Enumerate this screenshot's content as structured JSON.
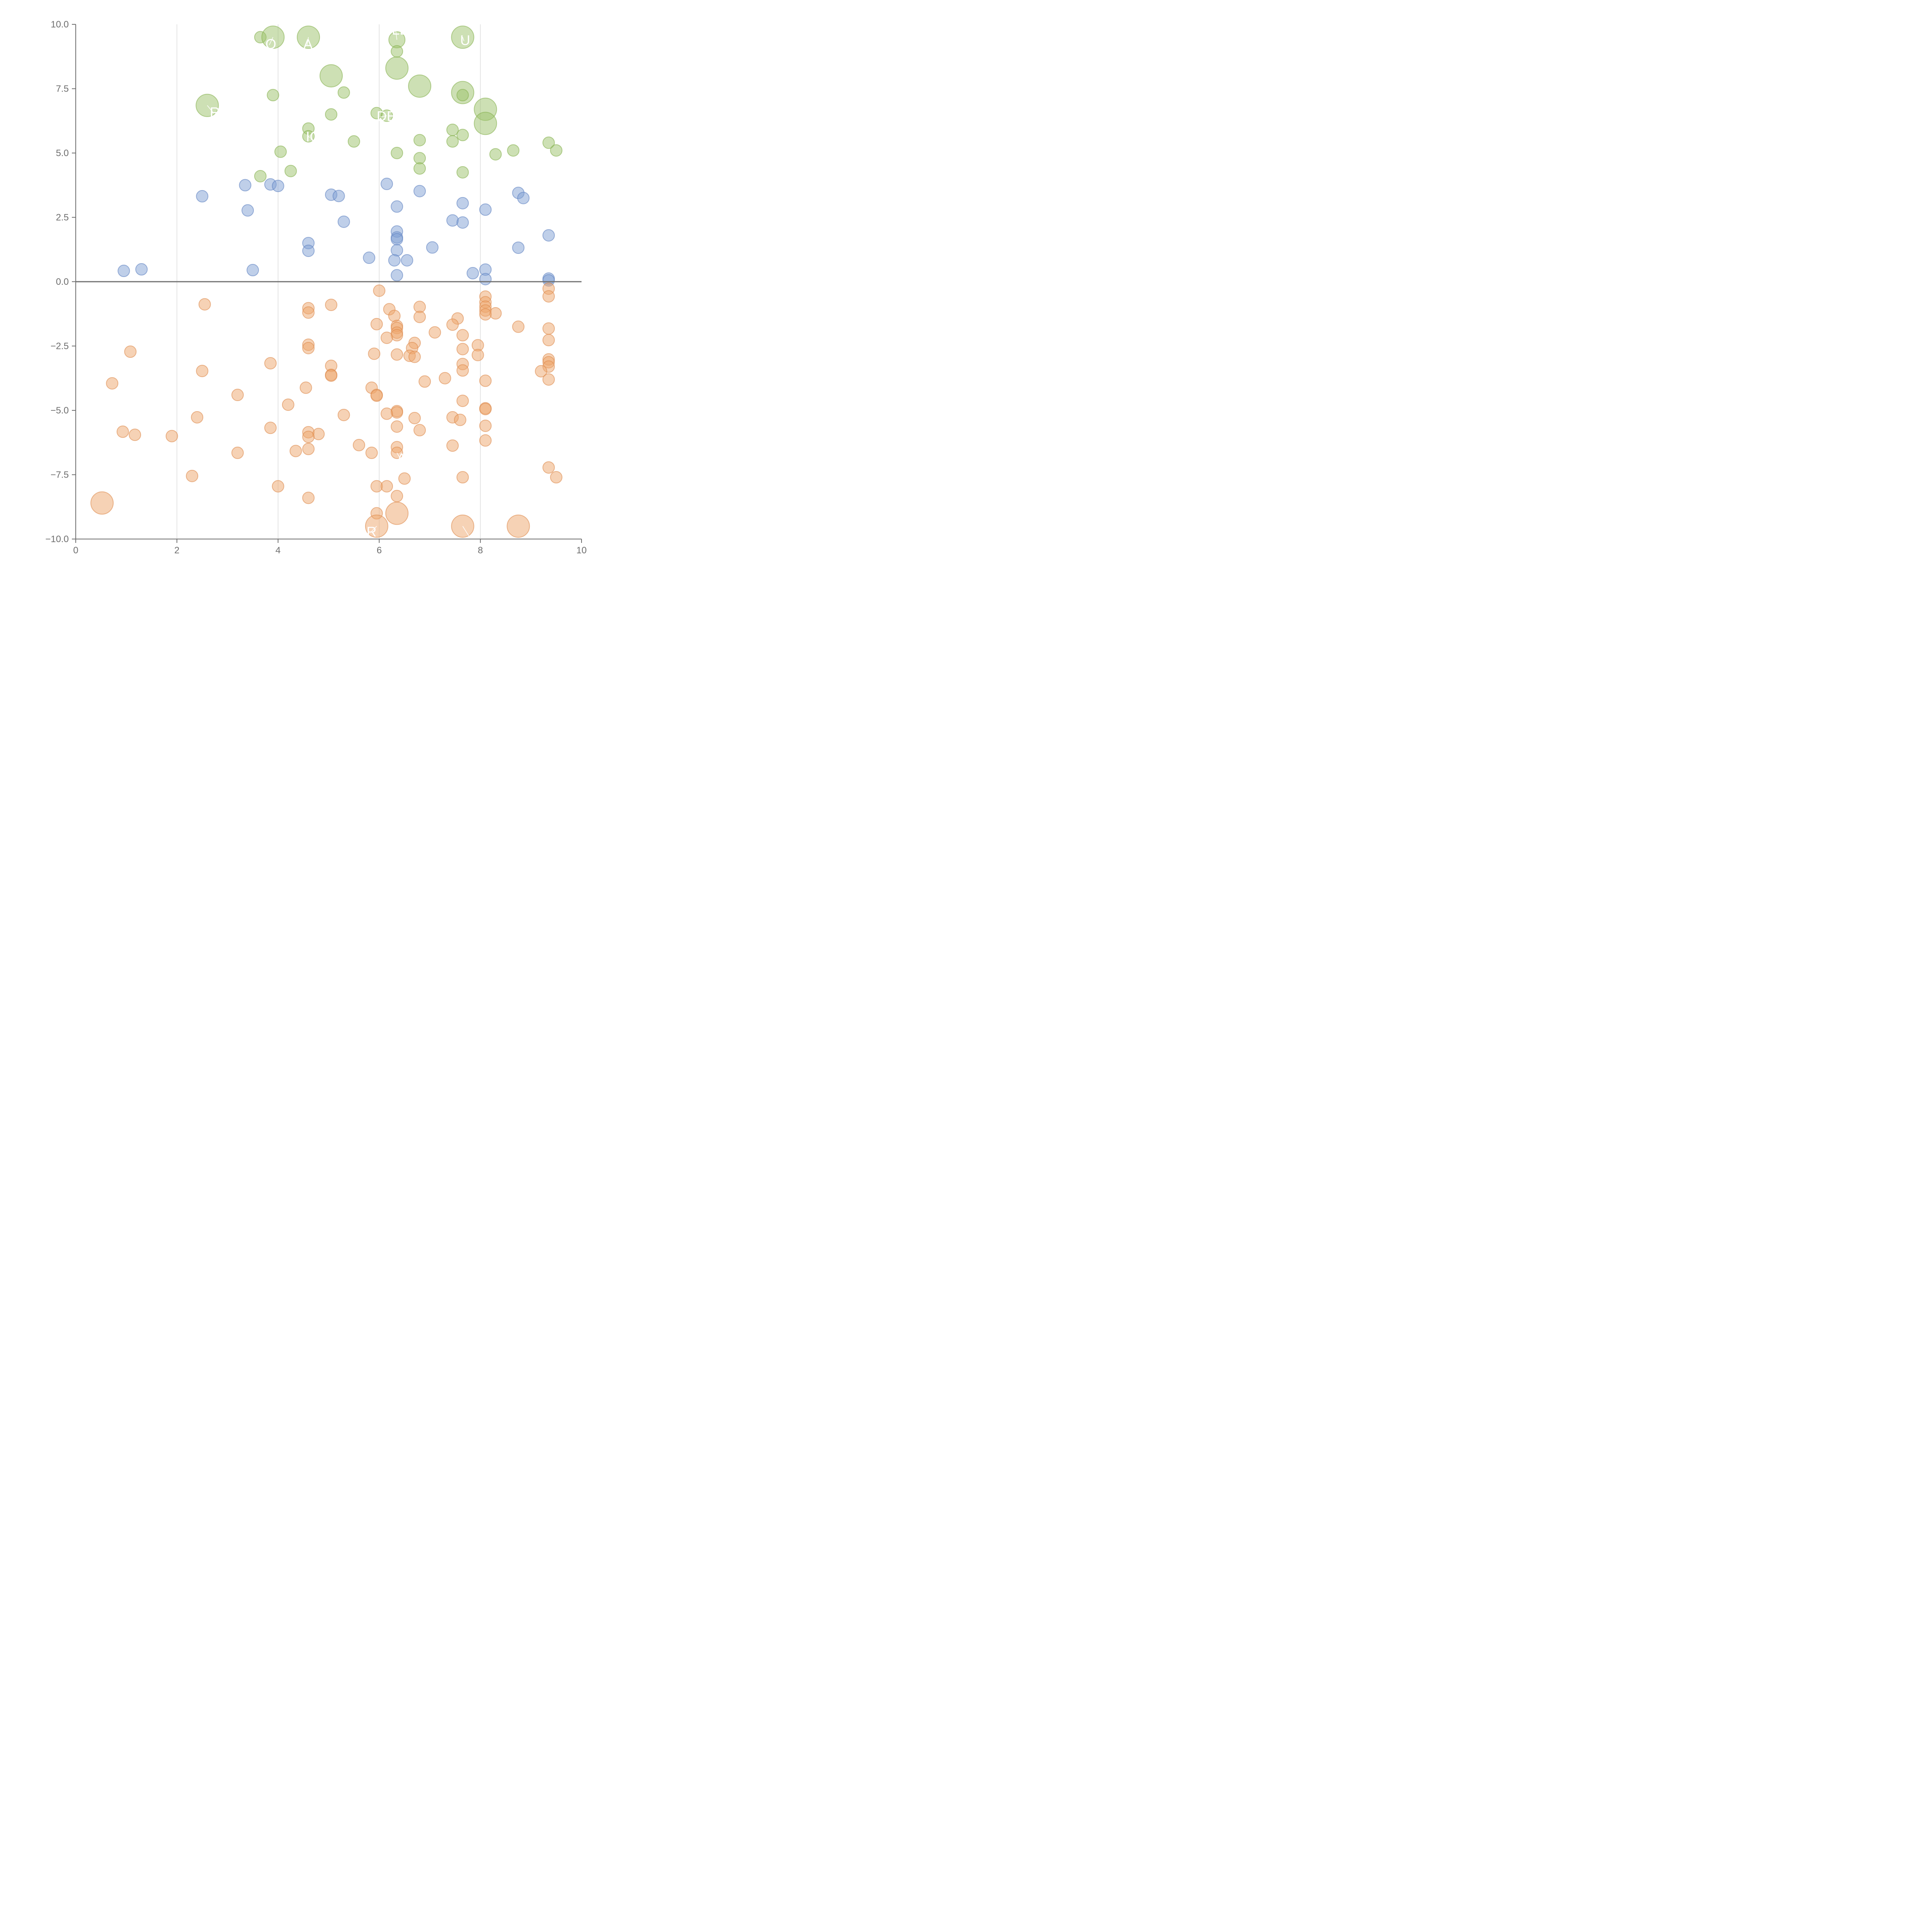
{
  "chart_data": {
    "type": "scatter",
    "title": "",
    "xlabel": "",
    "ylabel": "",
    "xlim": [
      0,
      10
    ],
    "ylim": [
      -10,
      10
    ],
    "x_ticks": [
      0,
      2,
      4,
      6,
      8,
      10
    ],
    "x_tick_labels": [
      "0",
      "2",
      "4",
      "6",
      "8",
      "10"
    ],
    "y_ticks": [
      10,
      7.5,
      5,
      2.5,
      0,
      -2.5,
      -5,
      -7.5,
      -10
    ],
    "y_tick_labels": [
      "10.0",
      "7.5",
      "5.0",
      "2.5",
      "0.0",
      "−2.5",
      "−5.0",
      "−7.5",
      "−10.0"
    ],
    "grid_x": [
      2,
      4,
      6,
      8
    ],
    "zero_line": 0,
    "series": [
      {
        "name": "green",
        "color": "#9cc26a",
        "stroke": "#86b04f",
        "points": [
          {
            "x": 3.65,
            "y": 9.5,
            "size": "s"
          },
          {
            "x": 3.9,
            "y": 9.5,
            "size": "l"
          },
          {
            "x": 4.6,
            "y": 9.5,
            "size": "l"
          },
          {
            "x": 6.35,
            "y": 9.4,
            "size": "m"
          },
          {
            "x": 7.65,
            "y": 9.5,
            "size": "l"
          },
          {
            "x": 6.35,
            "y": 8.95,
            "size": "s"
          },
          {
            "x": 6.35,
            "y": 8.3,
            "size": "l"
          },
          {
            "x": 5.05,
            "y": 8.0,
            "size": "l"
          },
          {
            "x": 6.8,
            "y": 7.6,
            "size": "l"
          },
          {
            "x": 5.3,
            "y": 7.35,
            "size": "s"
          },
          {
            "x": 7.65,
            "y": 7.35,
            "size": "l"
          },
          {
            "x": 7.65,
            "y": 7.25,
            "size": "s"
          },
          {
            "x": 3.9,
            "y": 7.25,
            "size": "s"
          },
          {
            "x": 2.6,
            "y": 6.85,
            "size": "l"
          },
          {
            "x": 8.1,
            "y": 6.7,
            "size": "l"
          },
          {
            "x": 5.95,
            "y": 6.55,
            "size": "s"
          },
          {
            "x": 6.15,
            "y": 6.45,
            "size": "s"
          },
          {
            "x": 5.05,
            "y": 6.5,
            "size": "s"
          },
          {
            "x": 8.1,
            "y": 6.15,
            "size": "l"
          },
          {
            "x": 4.6,
            "y": 5.95,
            "size": "s"
          },
          {
            "x": 7.45,
            "y": 5.9,
            "size": "s"
          },
          {
            "x": 7.65,
            "y": 5.7,
            "size": "s"
          },
          {
            "x": 4.6,
            "y": 5.65,
            "size": "s"
          },
          {
            "x": 6.8,
            "y": 5.5,
            "size": "s"
          },
          {
            "x": 5.5,
            "y": 5.45,
            "size": "s"
          },
          {
            "x": 7.45,
            "y": 5.45,
            "size": "s"
          },
          {
            "x": 9.35,
            "y": 5.4,
            "size": "s"
          },
          {
            "x": 9.5,
            "y": 5.1,
            "size": "s"
          },
          {
            "x": 8.65,
            "y": 5.1,
            "size": "s"
          },
          {
            "x": 4.05,
            "y": 5.05,
            "size": "s"
          },
          {
            "x": 6.35,
            "y": 5.0,
            "size": "s"
          },
          {
            "x": 8.3,
            "y": 4.95,
            "size": "s"
          },
          {
            "x": 6.8,
            "y": 4.8,
            "size": "s"
          },
          {
            "x": 6.8,
            "y": 4.4,
            "size": "s"
          },
          {
            "x": 4.25,
            "y": 4.3,
            "size": "s"
          },
          {
            "x": 7.65,
            "y": 4.25,
            "size": "s"
          },
          {
            "x": 3.65,
            "y": 4.1,
            "size": "s"
          }
        ]
      },
      {
        "name": "blue",
        "color": "#7f9fd4",
        "stroke": "#5f82c2",
        "points": [
          {
            "x": 3.35,
            "y": 3.75,
            "size": "s"
          },
          {
            "x": 3.85,
            "y": 3.78,
            "size": "s"
          },
          {
            "x": 4.0,
            "y": 3.72,
            "size": "s"
          },
          {
            "x": 6.15,
            "y": 3.8,
            "size": "s"
          },
          {
            "x": 6.8,
            "y": 3.52,
            "size": "s"
          },
          {
            "x": 8.75,
            "y": 3.45,
            "size": "s"
          },
          {
            "x": 8.85,
            "y": 3.25,
            "size": "s"
          },
          {
            "x": 5.05,
            "y": 3.38,
            "size": "s"
          },
          {
            "x": 5.2,
            "y": 3.33,
            "size": "s"
          },
          {
            "x": 2.5,
            "y": 3.32,
            "size": "s"
          },
          {
            "x": 7.65,
            "y": 3.05,
            "size": "s"
          },
          {
            "x": 6.35,
            "y": 2.92,
            "size": "s"
          },
          {
            "x": 8.1,
            "y": 2.8,
            "size": "s"
          },
          {
            "x": 3.4,
            "y": 2.77,
            "size": "s"
          },
          {
            "x": 7.45,
            "y": 2.38,
            "size": "s"
          },
          {
            "x": 5.3,
            "y": 2.33,
            "size": "s"
          },
          {
            "x": 7.65,
            "y": 2.3,
            "size": "s"
          },
          {
            "x": 6.35,
            "y": 1.95,
            "size": "s"
          },
          {
            "x": 9.35,
            "y": 1.8,
            "size": "s"
          },
          {
            "x": 6.35,
            "y": 1.72,
            "size": "s"
          },
          {
            "x": 6.35,
            "y": 1.65,
            "size": "s"
          },
          {
            "x": 4.6,
            "y": 1.5,
            "size": "s"
          },
          {
            "x": 7.05,
            "y": 1.33,
            "size": "s"
          },
          {
            "x": 8.75,
            "y": 1.32,
            "size": "s"
          },
          {
            "x": 6.35,
            "y": 1.22,
            "size": "s"
          },
          {
            "x": 4.6,
            "y": 1.2,
            "size": "s"
          },
          {
            "x": 5.8,
            "y": 0.93,
            "size": "s"
          },
          {
            "x": 6.3,
            "y": 0.83,
            "size": "s"
          },
          {
            "x": 6.55,
            "y": 0.83,
            "size": "s"
          },
          {
            "x": 1.3,
            "y": 0.48,
            "size": "s"
          },
          {
            "x": 0.95,
            "y": 0.42,
            "size": "s"
          },
          {
            "x": 3.5,
            "y": 0.45,
            "size": "s"
          },
          {
            "x": 8.1,
            "y": 0.47,
            "size": "s"
          },
          {
            "x": 7.85,
            "y": 0.33,
            "size": "s"
          },
          {
            "x": 6.35,
            "y": 0.25,
            "size": "s"
          },
          {
            "x": 9.35,
            "y": 0.12,
            "size": "s"
          },
          {
            "x": 8.1,
            "y": 0.1,
            "size": "s"
          },
          {
            "x": 9.35,
            "y": 0.05,
            "size": "s"
          }
        ]
      },
      {
        "name": "orange",
        "color": "#eea56c",
        "stroke": "#dd8a4c",
        "points": [
          {
            "x": 6.0,
            "y": -0.35,
            "size": "s"
          },
          {
            "x": 9.35,
            "y": -0.27,
            "size": "s"
          },
          {
            "x": 8.1,
            "y": -0.58,
            "size": "s"
          },
          {
            "x": 9.35,
            "y": -0.57,
            "size": "s"
          },
          {
            "x": 8.1,
            "y": -0.8,
            "size": "s"
          },
          {
            "x": 2.55,
            "y": -0.88,
            "size": "s"
          },
          {
            "x": 5.05,
            "y": -0.9,
            "size": "s"
          },
          {
            "x": 8.1,
            "y": -0.97,
            "size": "s"
          },
          {
            "x": 6.8,
            "y": -0.98,
            "size": "s"
          },
          {
            "x": 4.6,
            "y": -1.03,
            "size": "s"
          },
          {
            "x": 6.2,
            "y": -1.07,
            "size": "s"
          },
          {
            "x": 8.1,
            "y": -1.12,
            "size": "s"
          },
          {
            "x": 4.6,
            "y": -1.2,
            "size": "s"
          },
          {
            "x": 8.3,
            "y": -1.23,
            "size": "s"
          },
          {
            "x": 8.1,
            "y": -1.27,
            "size": "s"
          },
          {
            "x": 6.3,
            "y": -1.33,
            "size": "s"
          },
          {
            "x": 6.8,
            "y": -1.37,
            "size": "s"
          },
          {
            "x": 7.55,
            "y": -1.43,
            "size": "s"
          },
          {
            "x": 5.95,
            "y": -1.65,
            "size": "s"
          },
          {
            "x": 7.45,
            "y": -1.67,
            "size": "s"
          },
          {
            "x": 6.35,
            "y": -1.72,
            "size": "s"
          },
          {
            "x": 8.75,
            "y": -1.75,
            "size": "s"
          },
          {
            "x": 6.35,
            "y": -1.8,
            "size": "s"
          },
          {
            "x": 9.35,
            "y": -1.82,
            "size": "s"
          },
          {
            "x": 7.1,
            "y": -1.97,
            "size": "s"
          },
          {
            "x": 6.35,
            "y": -1.98,
            "size": "s"
          },
          {
            "x": 6.35,
            "y": -2.08,
            "size": "s"
          },
          {
            "x": 7.65,
            "y": -2.08,
            "size": "s"
          },
          {
            "x": 6.15,
            "y": -2.18,
            "size": "s"
          },
          {
            "x": 9.35,
            "y": -2.27,
            "size": "s"
          },
          {
            "x": 6.7,
            "y": -2.38,
            "size": "s"
          },
          {
            "x": 4.6,
            "y": -2.45,
            "size": "s"
          },
          {
            "x": 7.95,
            "y": -2.47,
            "size": "s"
          },
          {
            "x": 6.65,
            "y": -2.58,
            "size": "s"
          },
          {
            "x": 4.6,
            "y": -2.58,
            "size": "s"
          },
          {
            "x": 7.65,
            "y": -2.62,
            "size": "s"
          },
          {
            "x": 1.08,
            "y": -2.72,
            "size": "s"
          },
          {
            "x": 5.9,
            "y": -2.8,
            "size": "s"
          },
          {
            "x": 6.35,
            "y": -2.83,
            "size": "s"
          },
          {
            "x": 7.95,
            "y": -2.85,
            "size": "s"
          },
          {
            "x": 6.6,
            "y": -2.88,
            "size": "s"
          },
          {
            "x": 6.7,
            "y": -2.92,
            "size": "s"
          },
          {
            "x": 9.35,
            "y": -3.02,
            "size": "s"
          },
          {
            "x": 3.85,
            "y": -3.17,
            "size": "s"
          },
          {
            "x": 9.35,
            "y": -3.13,
            "size": "s"
          },
          {
            "x": 7.65,
            "y": -3.2,
            "size": "s"
          },
          {
            "x": 5.05,
            "y": -3.27,
            "size": "s"
          },
          {
            "x": 9.35,
            "y": -3.3,
            "size": "s"
          },
          {
            "x": 7.65,
            "y": -3.45,
            "size": "s"
          },
          {
            "x": 2.5,
            "y": -3.47,
            "size": "s"
          },
          {
            "x": 9.2,
            "y": -3.48,
            "size": "s"
          },
          {
            "x": 5.05,
            "y": -3.62,
            "size": "s"
          },
          {
            "x": 5.05,
            "y": -3.65,
            "size": "s"
          },
          {
            "x": 7.3,
            "y": -3.75,
            "size": "s"
          },
          {
            "x": 9.35,
            "y": -3.8,
            "size": "s"
          },
          {
            "x": 8.1,
            "y": -3.85,
            "size": "s"
          },
          {
            "x": 6.9,
            "y": -3.88,
            "size": "s"
          },
          {
            "x": 0.72,
            "y": -3.95,
            "size": "s"
          },
          {
            "x": 4.55,
            "y": -4.12,
            "size": "s"
          },
          {
            "x": 5.85,
            "y": -4.12,
            "size": "s"
          },
          {
            "x": 5.95,
            "y": -4.4,
            "size": "s"
          },
          {
            "x": 5.95,
            "y": -4.43,
            "size": "s"
          },
          {
            "x": 3.2,
            "y": -4.4,
            "size": "s"
          },
          {
            "x": 7.65,
            "y": -4.63,
            "size": "s"
          },
          {
            "x": 4.2,
            "y": -4.78,
            "size": "s"
          },
          {
            "x": 8.1,
            "y": -4.92,
            "size": "s"
          },
          {
            "x": 8.1,
            "y": -4.95,
            "size": "s"
          },
          {
            "x": 6.35,
            "y": -5.03,
            "size": "s"
          },
          {
            "x": 6.35,
            "y": -5.08,
            "size": "s"
          },
          {
            "x": 6.15,
            "y": -5.13,
            "size": "s"
          },
          {
            "x": 5.3,
            "y": -5.18,
            "size": "s"
          },
          {
            "x": 2.4,
            "y": -5.27,
            "size": "s"
          },
          {
            "x": 7.45,
            "y": -5.27,
            "size": "s"
          },
          {
            "x": 6.7,
            "y": -5.3,
            "size": "s"
          },
          {
            "x": 7.6,
            "y": -5.37,
            "size": "s"
          },
          {
            "x": 8.1,
            "y": -5.6,
            "size": "s"
          },
          {
            "x": 6.35,
            "y": -5.63,
            "size": "s"
          },
          {
            "x": 3.85,
            "y": -5.68,
            "size": "s"
          },
          {
            "x": 6.8,
            "y": -5.77,
            "size": "s"
          },
          {
            "x": 0.93,
            "y": -5.83,
            "size": "s"
          },
          {
            "x": 4.6,
            "y": -5.85,
            "size": "s"
          },
          {
            "x": 4.8,
            "y": -5.92,
            "size": "s"
          },
          {
            "x": 1.17,
            "y": -5.95,
            "size": "s"
          },
          {
            "x": 1.9,
            "y": -6.0,
            "size": "s"
          },
          {
            "x": 4.6,
            "y": -6.03,
            "size": "s"
          },
          {
            "x": 8.1,
            "y": -6.17,
            "size": "s"
          },
          {
            "x": 5.6,
            "y": -6.35,
            "size": "s"
          },
          {
            "x": 7.45,
            "y": -6.37,
            "size": "s"
          },
          {
            "x": 6.35,
            "y": -6.43,
            "size": "s"
          },
          {
            "x": 4.6,
            "y": -6.5,
            "size": "s"
          },
          {
            "x": 4.35,
            "y": -6.58,
            "size": "s"
          },
          {
            "x": 5.85,
            "y": -6.65,
            "size": "s"
          },
          {
            "x": 3.2,
            "y": -6.65,
            "size": "s"
          },
          {
            "x": 6.35,
            "y": -6.65,
            "size": "s"
          },
          {
            "x": 9.35,
            "y": -7.22,
            "size": "s"
          },
          {
            "x": 2.3,
            "y": -7.55,
            "size": "s"
          },
          {
            "x": 7.65,
            "y": -7.6,
            "size": "s"
          },
          {
            "x": 9.5,
            "y": -7.6,
            "size": "s"
          },
          {
            "x": 6.5,
            "y": -7.65,
            "size": "s"
          },
          {
            "x": 5.95,
            "y": -7.95,
            "size": "s"
          },
          {
            "x": 6.15,
            "y": -7.95,
            "size": "s"
          },
          {
            "x": 4.0,
            "y": -7.95,
            "size": "s"
          },
          {
            "x": 6.35,
            "y": -8.33,
            "size": "s"
          },
          {
            "x": 4.6,
            "y": -8.4,
            "size": "s"
          },
          {
            "x": 0.52,
            "y": -8.6,
            "size": "l"
          },
          {
            "x": 5.95,
            "y": -9.0,
            "size": "s"
          },
          {
            "x": 6.35,
            "y": -9.0,
            "size": "l"
          },
          {
            "x": 5.95,
            "y": -9.5,
            "size": "l"
          },
          {
            "x": 7.65,
            "y": -9.5,
            "size": "l"
          },
          {
            "x": 8.75,
            "y": -9.5,
            "size": "l"
          }
        ]
      }
    ],
    "annotations": [
      {
        "text": "LE",
        "x": 6.25,
        "y": 9.6,
        "lx": 6.35,
        "ly": 9.4
      },
      {
        "text": "U",
        "x": 7.6,
        "y": 9.2,
        "lx": 7.65,
        "ly": 9.5
      },
      {
        "text": "O",
        "x": 3.75,
        "y": 9.05,
        "lx": 3.9,
        "ly": 9.5
      },
      {
        "text": "A",
        "x": 4.5,
        "y": 9.05,
        "lx": 4.6,
        "ly": 9.5
      },
      {
        "text": "R",
        "x": 2.65,
        "y": 6.4,
        "lx": 2.6,
        "ly": 6.85
      },
      {
        "text": "DE",
        "x": 5.95,
        "y": 6.25,
        "lx": 6.15,
        "ly": 6.45
      },
      {
        "text": "IO",
        "x": 4.55,
        "y": 5.45,
        "lx": 4.6,
        "ly": 5.65
      },
      {
        "text": "A",
        "x": 6.35,
        "y": -7.05,
        "lx": 6.35,
        "ly": -6.65
      },
      {
        "text": "R",
        "x": 5.75,
        "y": -9.9,
        "lx": 5.95,
        "ly": -9.5
      },
      {
        "text": "O",
        "x": 7.75,
        "y": -10.2,
        "lx": 7.65,
        "ly": -9.5
      }
    ]
  }
}
